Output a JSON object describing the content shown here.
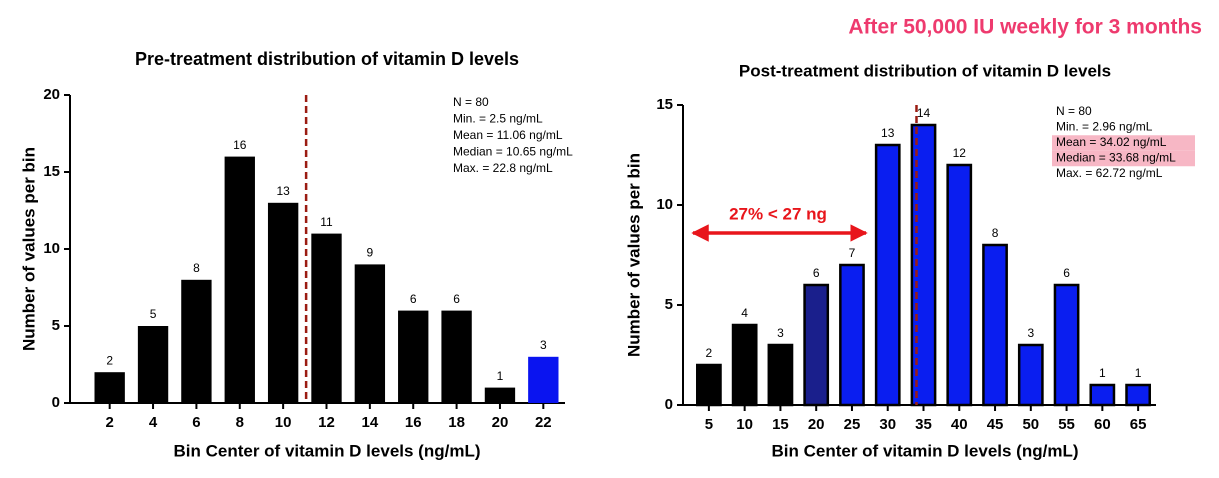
{
  "headline": "After 50,000 IU weekly for 3 months",
  "chart_data": [
    {
      "type": "bar",
      "title": "Pre-treatment distribution of vitamin D levels",
      "x_label": "Bin Center of vitamin D levels (ng/mL)",
      "y_label": "Number of values per bin",
      "categories": [
        2,
        4,
        6,
        8,
        10,
        12,
        14,
        16,
        18,
        20,
        22
      ],
      "values": [
        2,
        5,
        8,
        16,
        13,
        11,
        9,
        6,
        6,
        1,
        3
      ],
      "colors": [
        "#000000",
        "#000000",
        "#000000",
        "#000000",
        "#000000",
        "#000000",
        "#000000",
        "#000000",
        "#000000",
        "#000000",
        "#0a14f0"
      ],
      "ylim": [
        0,
        20
      ],
      "yticks": [
        0,
        5,
        10,
        15,
        20
      ],
      "mean_line": 11.06,
      "stats": [
        "N = 80",
        "Min. = 2.5 ng/mL",
        "Mean = 11.06 ng/mL",
        "Median = 10.65 ng/mL",
        "Max. = 22.8 ng/mL"
      ],
      "highlighted_stats": []
    },
    {
      "type": "bar",
      "title": "Post-treatment distribution of vitamin D levels",
      "x_label": "Bin Center of vitamin D levels (ng/mL)",
      "y_label": "Number of values per bin",
      "categories": [
        5,
        10,
        15,
        20,
        25,
        30,
        35,
        40,
        45,
        50,
        55,
        60,
        65
      ],
      "values": [
        2,
        4,
        3,
        6,
        7,
        13,
        14,
        12,
        8,
        3,
        6,
        1,
        1
      ],
      "colors": [
        "#000000",
        "#000000",
        "#000000",
        "#1a1f8c",
        "#0a1ef0",
        "#0a1ef0",
        "#0a1ef0",
        "#0a1ef0",
        "#0a1ef0",
        "#0a1ef0",
        "#0a1ef0",
        "#0a1ef0",
        "#0a1ef0"
      ],
      "ylim": [
        0,
        15
      ],
      "yticks": [
        0,
        5,
        10,
        15
      ],
      "mean_line": 34.02,
      "stats": [
        "N = 80",
        "Min. = 2.96 ng/mL",
        "Mean = 34.02 ng/mL",
        "Median = 33.68 ng/mL",
        "Max. = 62.72 ng/mL"
      ],
      "highlighted_stats": [
        2,
        3
      ],
      "annotation": "27% < 27 ng"
    }
  ]
}
